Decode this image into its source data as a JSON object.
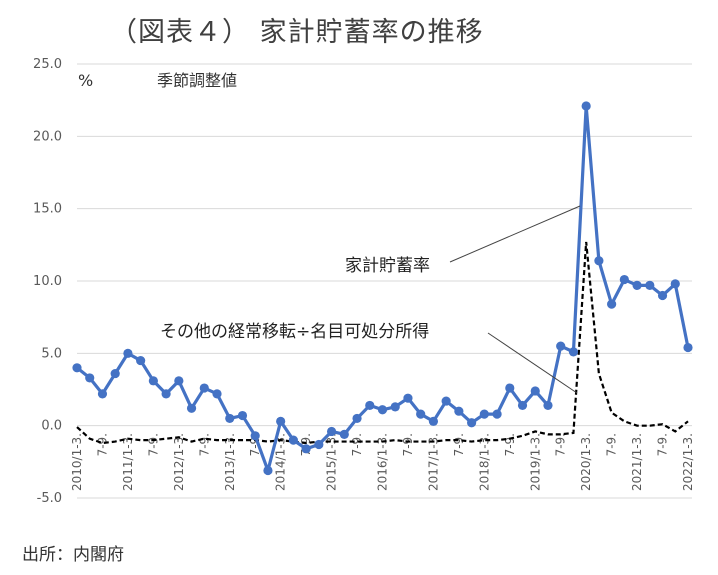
{
  "title": "（図表４） 家計貯蓄率の推移",
  "source": "出所：内閣府",
  "chart_data": {
    "type": "line",
    "title": "（図表４） 家計貯蓄率の推移",
    "ylabel": "%",
    "yunit_note": "季節調整値",
    "ylim": [
      -5,
      25
    ],
    "yticks": [
      "25.0",
      "20.0",
      "15.0",
      "10.0",
      "5.0",
      "0.0",
      "-5.0"
    ],
    "grid": true,
    "legend": "none",
    "x_labels": [
      "2010/1-3.",
      "7-9.",
      "2011/1-3.",
      "7-9.",
      "2012/1-3.",
      "7-9.",
      "2013/1-3.",
      "7-9.",
      "2014/1-3.",
      "7-9.",
      "2015/1-3.",
      "7-9.",
      "2016/1-3.",
      "7-9.",
      "2017/1-3.",
      "7-9.",
      "2018/1-3.",
      "7-9.",
      "2019/1-3.",
      "7-9.",
      "2020/1-3.",
      "7-9.",
      "2021/1-3.",
      "7-9.",
      "2022/1-3."
    ],
    "series": [
      {
        "name": "家計貯蓄率",
        "color": "#4472C4",
        "style": "solid-markers",
        "values": [
          4.0,
          3.3,
          2.2,
          3.6,
          5.0,
          4.5,
          3.1,
          2.2,
          3.1,
          1.2,
          2.6,
          2.2,
          0.5,
          0.7,
          -0.7,
          -3.1,
          0.3,
          -1.0,
          -1.6,
          -1.3,
          -0.4,
          -0.6,
          0.5,
          1.4,
          1.1,
          1.3,
          1.9,
          0.8,
          0.3,
          1.7,
          1.0,
          0.2,
          0.8,
          0.8,
          2.6,
          1.4,
          2.4,
          1.4,
          5.5,
          5.1,
          22.1,
          11.4,
          8.4,
          10.1,
          9.7,
          9.7,
          9.0,
          9.8,
          5.4
        ]
      },
      {
        "name": "その他の経常移転÷名目可処分所得",
        "color": "#000000",
        "style": "dashed",
        "values": [
          -0.1,
          -0.9,
          -1.2,
          -1.1,
          -0.9,
          -1.0,
          -1.0,
          -0.9,
          -0.8,
          -1.1,
          -0.9,
          -1.0,
          -1.0,
          -1.0,
          -1.0,
          -1.1,
          -1.0,
          -1.1,
          -1.2,
          -1.1,
          -1.1,
          -1.1,
          -1.1,
          -1.1,
          -1.1,
          -1.0,
          -1.1,
          -1.1,
          -1.1,
          -1.0,
          -1.0,
          -1.1,
          -1.0,
          -1.0,
          -0.9,
          -0.7,
          -0.4,
          -0.6,
          -0.6,
          -0.5,
          12.7,
          3.6,
          0.9,
          0.3,
          0.0,
          0.0,
          0.1,
          -0.4,
          0.3
        ]
      }
    ],
    "annotations": [
      "家計貯蓄率",
      "その他の経常移転÷名目可処分所得"
    ]
  }
}
